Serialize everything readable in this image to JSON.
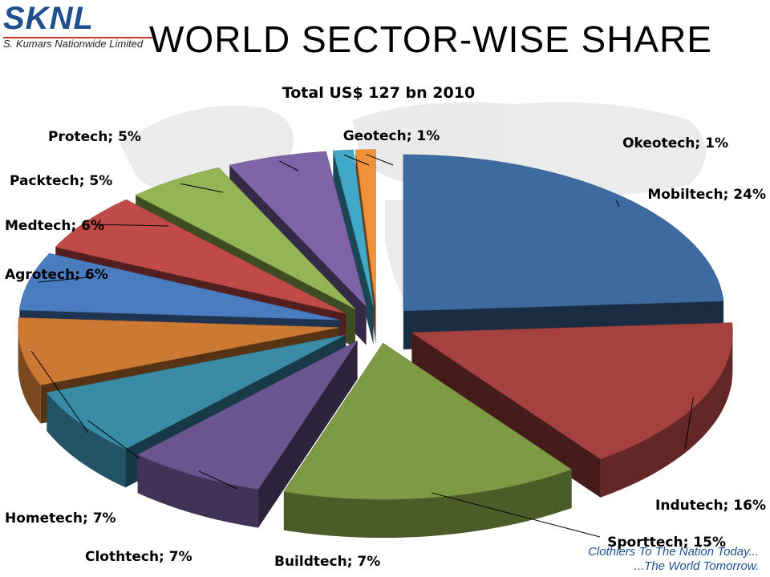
{
  "header": {
    "logo_text": "SKNL",
    "logo_subtitle": "S. Kumars Nationwide Limited",
    "title": "WORLD SECTOR-WISE SHARE"
  },
  "footer": {
    "tagline_line1": "Clothiers To The Nation Today...",
    "tagline_line2": "...The World Tomorrow."
  },
  "colors": {
    "brand_blue": "#1f4f8f",
    "brand_red": "#c0392b"
  },
  "chart_data": {
    "type": "pie",
    "style": "3d-exploded",
    "title": "Total US$ 127 bn 2010",
    "label_format": "category; percent",
    "slices": [
      {
        "label": "Mobiltech",
        "value": 24,
        "color": "#3d6aa0"
      },
      {
        "label": "Indutech",
        "value": 16,
        "color": "#a54240"
      },
      {
        "label": "Sporttech",
        "value": 15,
        "color": "#7e9a45"
      },
      {
        "label": "Buildtech",
        "value": 7,
        "color": "#6b5590"
      },
      {
        "label": "Clothtech",
        "value": 7,
        "color": "#3a8ba6"
      },
      {
        "label": "Hometech",
        "value": 7,
        "color": "#cc7a33"
      },
      {
        "label": "Agrotech",
        "value": 6,
        "color": "#4a7cc0"
      },
      {
        "label": "Medtech",
        "value": 6,
        "color": "#c04a48"
      },
      {
        "label": "Packtech",
        "value": 5,
        "color": "#93b556"
      },
      {
        "label": "Protech",
        "value": 5,
        "color": "#7e63a6"
      },
      {
        "label": "Geotech",
        "value": 1,
        "color": "#41a8c8"
      },
      {
        "label": "Okeotech",
        "value": 1,
        "color": "#f0923a"
      }
    ]
  }
}
